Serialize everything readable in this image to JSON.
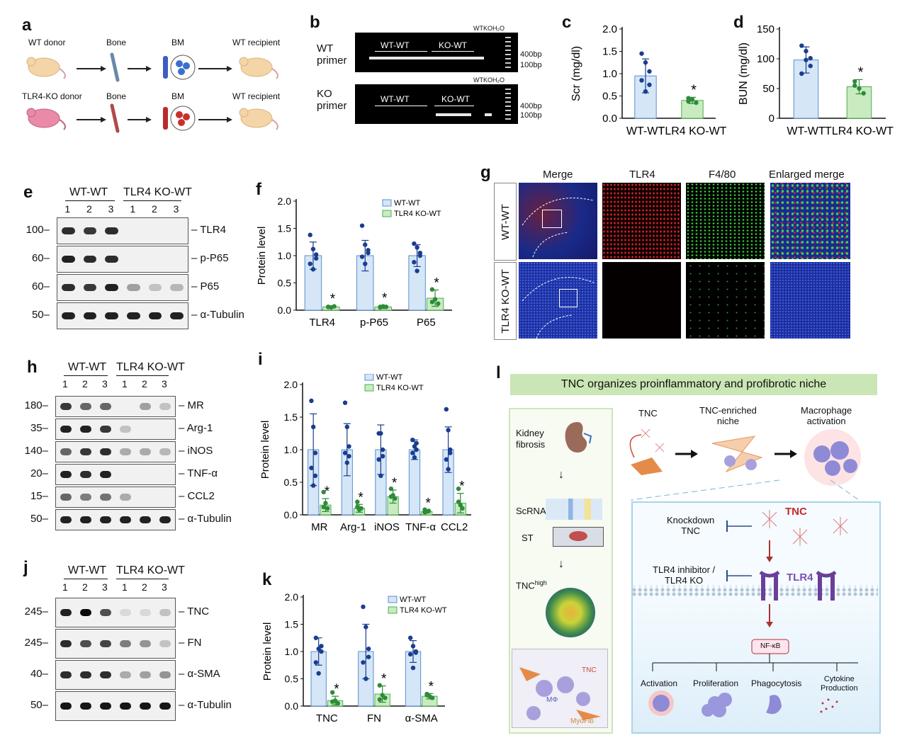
{
  "labels": {
    "a": "a",
    "b": "b",
    "c": "c",
    "d": "d",
    "e": "e",
    "f": "f",
    "g": "g",
    "h": "h",
    "i": "i",
    "j": "j",
    "k": "k",
    "l": "l"
  },
  "panel_a": {
    "row1": [
      "WT donor",
      "Bone",
      "BM",
      "WT recipient"
    ],
    "row2": [
      "TLR4-KO donor",
      "Bone",
      "BM",
      "WT recipient"
    ]
  },
  "panel_b": {
    "wt_primer": "WT\nprimer",
    "ko_primer": "KO\nprimer",
    "wt_group": "WT-WT",
    "ko_group": "KO-WT",
    "ctrl": "WTKOH₂O",
    "ladder_400": "400bp",
    "ladder_100": "100bp"
  },
  "panel_e": {
    "groups": [
      "WT-WT",
      "TLR4 KO-WT"
    ],
    "lanes": [
      "1",
      "2",
      "3",
      "1",
      "2",
      "3"
    ],
    "bands": [
      {
        "mw": "100",
        "name": "TLR4"
      },
      {
        "mw": "60",
        "name": "p-P65"
      },
      {
        "mw": "60",
        "name": "P65"
      },
      {
        "mw": "50",
        "name": "α-Tubulin"
      }
    ]
  },
  "panel_h": {
    "groups": [
      "WT-WT",
      "TLR4 KO-WT"
    ],
    "lanes": [
      "1",
      "2",
      "3",
      "1",
      "2",
      "3"
    ],
    "bands": [
      {
        "mw": "180",
        "name": "MR"
      },
      {
        "mw": "35",
        "name": "Arg-1"
      },
      {
        "mw": "140",
        "name": "iNOS"
      },
      {
        "mw": "20",
        "name": "TNF-α"
      },
      {
        "mw": "15",
        "name": "CCL2"
      },
      {
        "mw": "50",
        "name": "α-Tubulin"
      }
    ]
  },
  "panel_j": {
    "groups": [
      "WT-WT",
      "TLR4 KO-WT"
    ],
    "lanes": [
      "1",
      "2",
      "3",
      "1",
      "2",
      "3"
    ],
    "bands": [
      {
        "mw": "245",
        "name": "TNC"
      },
      {
        "mw": "245",
        "name": "FN"
      },
      {
        "mw": "40",
        "name": "α-SMA"
      },
      {
        "mw": "50",
        "name": "α-Tubulin"
      }
    ]
  },
  "panel_g": {
    "columns": [
      "Merge",
      "TLR4",
      "F4/80",
      "Enlarged merge"
    ],
    "rows": [
      "WT-WT",
      "TLR4 KO-WT"
    ]
  },
  "panel_l": {
    "title": "TNC organizes proinflammatory and profibrotic niche",
    "left": [
      "Kidney\nfibrosis",
      "ScRNA",
      "ST",
      "TNC",
      "high"
    ],
    "inset": [
      "TNC",
      "MΦ",
      "MyoFib"
    ],
    "top": [
      "TNC",
      "TNC-enriched\nniche",
      "Macrophage\nactivation"
    ],
    "knockdown": "Knockdown\nTNC",
    "inhibitor": "TLR4 inhibitor /\nTLR4 KO",
    "tnc_red": "TNC",
    "tlr4": "TLR4",
    "nfkb": "NF-κB",
    "outcomes": [
      "Activation",
      "Proliferation",
      "Phagocytosis",
      "Cytokine\nProduction"
    ]
  },
  "chart_data": [
    {
      "id": "c",
      "type": "bar",
      "ylabel": "Scr (mg/dl)",
      "ylim": [
        0,
        2.0
      ],
      "yticks": [
        0,
        0.5,
        1.0,
        1.5,
        2.0
      ],
      "categories": [
        "WT-WT",
        "TLR4 KO-WT"
      ],
      "values": [
        0.95,
        0.4
      ],
      "errors": [
        0.38,
        0.07
      ],
      "points": [
        [
          1.45,
          1.25,
          1.05,
          0.85,
          0.6,
          0.75
        ],
        [
          0.45,
          0.42,
          0.35,
          0.38
        ]
      ],
      "sig": [
        "",
        "*"
      ],
      "colors": [
        "#d5e6f7",
        "#c8ecc0"
      ],
      "dotcolors": [
        "#1a3d8f",
        "#2e8b3a"
      ]
    },
    {
      "id": "d",
      "type": "bar",
      "ylabel": "BUN (mg/dl)",
      "ylim": [
        0,
        150
      ],
      "yticks": [
        0,
        50,
        100,
        150
      ],
      "categories": [
        "WT-WT",
        "TLR4 KO-WT"
      ],
      "values": [
        98,
        53
      ],
      "errors": [
        22,
        12
      ],
      "points": [
        [
          122,
          113,
          88,
          75,
          98,
          101
        ],
        [
          62,
          50,
          42,
          55
        ]
      ],
      "sig": [
        "",
        "*"
      ],
      "colors": [
        "#d5e6f7",
        "#c8ecc0"
      ],
      "dotcolors": [
        "#1a3d8f",
        "#2e8b3a"
      ]
    },
    {
      "id": "f",
      "type": "bar",
      "ylabel": "Protein level",
      "ylim": [
        0,
        2.0
      ],
      "yticks": [
        0,
        0.5,
        1.0,
        1.5,
        2.0
      ],
      "categories": [
        "TLR4",
        "p-P65",
        "P65"
      ],
      "series": [
        {
          "name": "WT-WT",
          "values": [
            1.0,
            1.0,
            1.0
          ],
          "errors": [
            0.25,
            0.28,
            0.2
          ]
        },
        {
          "name": "TLR4 KO-WT",
          "values": [
            0.06,
            0.06,
            0.22
          ],
          "errors": [
            0.02,
            0.03,
            0.15
          ]
        }
      ],
      "points": [
        [
          [
            1.38,
            1.12,
            0.95,
            0.85,
            0.75,
            1.02
          ],
          [
            0.06,
            0.05,
            0.07,
            0.06
          ]
        ],
        [
          [
            1.55,
            1.2,
            1.05,
            0.98,
            0.85,
            1.1
          ],
          [
            0.05,
            0.07,
            0.06,
            0.06
          ]
        ],
        [
          [
            1.22,
            1.15,
            1.0,
            0.88,
            0.72,
            1.05
          ],
          [
            0.38,
            0.2,
            0.12,
            0.15
          ]
        ]
      ],
      "sig": [
        "*",
        "*",
        "*"
      ]
    },
    {
      "id": "i",
      "type": "bar",
      "ylabel": "Protein level",
      "ylim": [
        0,
        2.0
      ],
      "yticks": [
        0,
        0.5,
        1.0,
        1.5,
        2.0
      ],
      "categories": [
        "MR",
        "Arg-1",
        "iNOS",
        "TNF-α",
        "CCL2"
      ],
      "series": [
        {
          "name": "WT-WT",
          "values": [
            1.0,
            1.0,
            1.0,
            1.0,
            1.0
          ],
          "errors": [
            0.55,
            0.4,
            0.38,
            0.15,
            0.35
          ]
        },
        {
          "name": "TLR4 KO-WT",
          "values": [
            0.15,
            0.1,
            0.28,
            0.05,
            0.18
          ],
          "errors": [
            0.1,
            0.06,
            0.1,
            0.02,
            0.15
          ]
        }
      ],
      "points": [
        [
          [
            1.75,
            1.35,
            0.95,
            0.72,
            0.45,
            0.6
          ],
          [
            0.35,
            0.18,
            0.1,
            0.12
          ]
        ],
        [
          [
            1.72,
            1.35,
            1.05,
            0.95,
            0.8,
            0.9
          ],
          [
            0.2,
            0.08,
            0.1,
            0.12
          ]
        ],
        [
          [
            1.25,
            1.25,
            1.0,
            0.85,
            0.6,
            0.9
          ],
          [
            0.4,
            0.3,
            0.25,
            0.28
          ]
        ],
        [
          [
            1.15,
            1.05,
            1.0,
            0.95,
            0.88,
            1.1
          ],
          [
            0.08,
            0.05,
            0.06,
            0.04
          ]
        ],
        [
          [
            1.62,
            1.3,
            1.0,
            0.85,
            0.7,
            0.95
          ],
          [
            0.4,
            0.15,
            0.1,
            0.2
          ]
        ]
      ],
      "sig": [
        "*",
        "*",
        "*",
        "*",
        "*"
      ]
    },
    {
      "id": "k",
      "type": "bar",
      "ylabel": "Protein level",
      "ylim": [
        0,
        2.0
      ],
      "yticks": [
        0,
        0.5,
        1.0,
        1.5,
        2.0
      ],
      "categories": [
        "TNC",
        "FN",
        "α-SMA"
      ],
      "series": [
        {
          "name": "WT-WT",
          "values": [
            1.0,
            1.0,
            1.0
          ],
          "errors": [
            0.25,
            0.5,
            0.2
          ]
        },
        {
          "name": "TLR4 KO-WT",
          "values": [
            0.1,
            0.22,
            0.18
          ],
          "errors": [
            0.08,
            0.15,
            0.05
          ]
        }
      ],
      "points": [
        [
          [
            1.25,
            1.05,
            1.0,
            0.8,
            0.6,
            1.1
          ],
          [
            0.25,
            0.1,
            0.05,
            0.08
          ]
        ],
        [
          [
            1.82,
            1.45,
            1.05,
            0.8,
            0.5,
            0.9
          ],
          [
            0.38,
            0.2,
            0.15,
            0.12
          ]
        ],
        [
          [
            1.25,
            1.1,
            1.0,
            0.95,
            0.7,
            0.98
          ],
          [
            0.22,
            0.18,
            0.15,
            0.2
          ]
        ]
      ],
      "sig": [
        "*",
        "*",
        "*"
      ]
    }
  ]
}
